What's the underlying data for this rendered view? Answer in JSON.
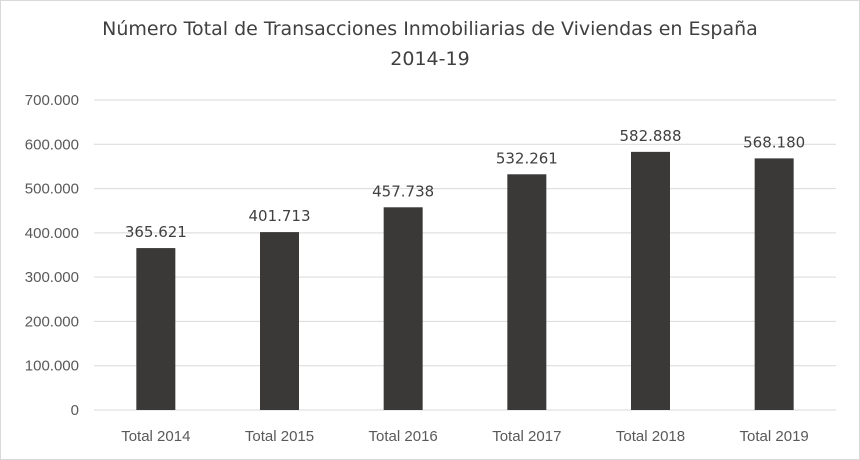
{
  "chart_data": {
    "type": "bar",
    "title_lines": [
      "Número Total de Transacciones Inmobiliarias de Viviendas en España",
      "2014-19"
    ],
    "categories": [
      "Total 2014",
      "Total 2015",
      "Total 2016",
      "Total 2017",
      "Total 2018",
      "Total 2019"
    ],
    "values": [
      365621,
      401713,
      457738,
      532261,
      582888,
      568180
    ],
    "data_labels": [
      "365.621",
      "401.713",
      "457.738",
      "532.261",
      "582.888",
      "568.180"
    ],
    "yticks": [
      0,
      100000,
      200000,
      300000,
      400000,
      500000,
      600000,
      700000
    ],
    "ytick_labels": [
      "0",
      "100.000",
      "200.000",
      "300.000",
      "400.000",
      "500.000",
      "600.000",
      "700.000"
    ],
    "ylim": [
      0,
      700000
    ],
    "grid": true,
    "legend": "none",
    "xlabel": "",
    "ylabel": "",
    "colors": {
      "bar": "#3a3937",
      "grid": "#d9d9d9",
      "tick_text": "#595959",
      "label_text": "#404040"
    }
  }
}
